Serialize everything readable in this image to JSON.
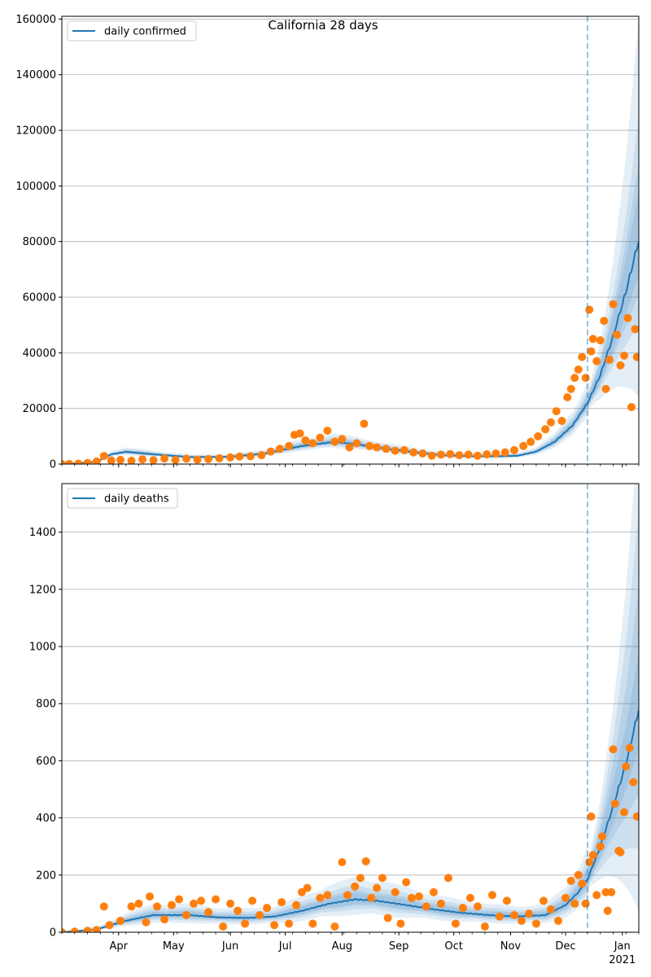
{
  "figure": {
    "title": "California 28 days"
  },
  "colors": {
    "line": "#1f77b4",
    "points": "#ff7f0e",
    "band": "#1f77b4",
    "grid": "#b0b0b0",
    "vline": "#1f77b4"
  },
  "x_axis": {
    "month_ticks": [
      {
        "label": "Apr",
        "date": "2020-04-01"
      },
      {
        "label": "May",
        "date": "2020-05-01"
      },
      {
        "label": "Jun",
        "date": "2020-06-01"
      },
      {
        "label": "Jul",
        "date": "2020-07-01"
      },
      {
        "label": "Aug",
        "date": "2020-08-01"
      },
      {
        "label": "Sep",
        "date": "2020-09-01"
      },
      {
        "label": "Oct",
        "date": "2020-10-01"
      },
      {
        "label": "Nov",
        "date": "2020-11-01"
      },
      {
        "label": "Dec",
        "date": "2020-12-01"
      },
      {
        "label": "Jan",
        "date": "2021-01-01"
      }
    ],
    "year_label": "2021",
    "xlim": [
      "2020-03-01",
      "2021-01-10"
    ],
    "forecast_start": "2020-12-13"
  },
  "chart_data": [
    {
      "type": "line",
      "title": "California 28 days",
      "legend": "daily confirmed",
      "legend_position": "top-left",
      "grid": "horizontal",
      "ylim": [
        0,
        161000
      ],
      "yticks": [
        0,
        20000,
        40000,
        60000,
        80000,
        100000,
        120000,
        140000,
        160000
      ],
      "median_keyframes": [
        [
          "2020-03-01",
          0
        ],
        [
          "2020-03-20",
          800
        ],
        [
          "2020-03-28",
          3500
        ],
        [
          "2020-04-05",
          4400
        ],
        [
          "2020-04-20",
          3500
        ],
        [
          "2020-05-10",
          2500
        ],
        [
          "2020-06-01",
          2600
        ],
        [
          "2020-06-20",
          3800
        ],
        [
          "2020-07-10",
          6500
        ],
        [
          "2020-07-28",
          8000
        ],
        [
          "2020-08-10",
          7000
        ],
        [
          "2020-08-25",
          5500
        ],
        [
          "2020-09-10",
          4200
        ],
        [
          "2020-09-25",
          3200
        ],
        [
          "2020-10-10",
          2800
        ],
        [
          "2020-10-25",
          2800
        ],
        [
          "2020-11-05",
          3000
        ],
        [
          "2020-11-15",
          4500
        ],
        [
          "2020-11-25",
          8000
        ],
        [
          "2020-12-05",
          14000
        ],
        [
          "2020-12-13",
          22000
        ],
        [
          "2020-12-20",
          32000
        ],
        [
          "2020-12-27",
          46000
        ],
        [
          "2021-01-03",
          62000
        ],
        [
          "2021-01-10",
          80500
        ]
      ],
      "band_widths": [
        [
          0.1,
          0.1,
          0.12,
          0.18
        ],
        [
          0.22,
          0.35,
          0.55,
          1.0
        ]
      ],
      "band_keyframes": [
        "2020-12-13",
        "2021-01-10"
      ],
      "hist_band_widths": [
        0.18,
        0.4,
        0.75,
        1.2
      ],
      "observed": [
        [
          "2020-03-01",
          0
        ],
        [
          "2020-03-05",
          50
        ],
        [
          "2020-03-10",
          150
        ],
        [
          "2020-03-15",
          400
        ],
        [
          "2020-03-20",
          900
        ],
        [
          "2020-03-24",
          2900
        ],
        [
          "2020-03-28",
          1300
        ],
        [
          "2020-04-02",
          1500
        ],
        [
          "2020-04-08",
          1200
        ],
        [
          "2020-04-14",
          1700
        ],
        [
          "2020-04-20",
          1400
        ],
        [
          "2020-04-26",
          2000
        ],
        [
          "2020-05-02",
          1500
        ],
        [
          "2020-05-08",
          1900
        ],
        [
          "2020-05-14",
          1600
        ],
        [
          "2020-05-20",
          1800
        ],
        [
          "2020-05-26",
          2100
        ],
        [
          "2020-06-01",
          2400
        ],
        [
          "2020-06-06",
          2700
        ],
        [
          "2020-06-12",
          2800
        ],
        [
          "2020-06-18",
          3200
        ],
        [
          "2020-06-23",
          4500
        ],
        [
          "2020-06-28",
          5500
        ],
        [
          "2020-07-03",
          6500
        ],
        [
          "2020-07-06",
          10500
        ],
        [
          "2020-07-09",
          11000
        ],
        [
          "2020-07-12",
          8500
        ],
        [
          "2020-07-16",
          7500
        ],
        [
          "2020-07-20",
          9500
        ],
        [
          "2020-07-24",
          12000
        ],
        [
          "2020-07-28",
          8000
        ],
        [
          "2020-08-01",
          9000
        ],
        [
          "2020-08-05",
          6000
        ],
        [
          "2020-08-09",
          7500
        ],
        [
          "2020-08-13",
          14500
        ],
        [
          "2020-08-16",
          6500
        ],
        [
          "2020-08-20",
          6000
        ],
        [
          "2020-08-25",
          5500
        ],
        [
          "2020-08-30",
          4800
        ],
        [
          "2020-09-04",
          5000
        ],
        [
          "2020-09-09",
          4200
        ],
        [
          "2020-09-14",
          3800
        ],
        [
          "2020-09-19",
          3000
        ],
        [
          "2020-09-24",
          3400
        ],
        [
          "2020-09-29",
          3600
        ],
        [
          "2020-10-04",
          3200
        ],
        [
          "2020-10-09",
          3400
        ],
        [
          "2020-10-14",
          3000
        ],
        [
          "2020-10-19",
          3500
        ],
        [
          "2020-10-24",
          3800
        ],
        [
          "2020-10-29",
          4200
        ],
        [
          "2020-11-03",
          5000
        ],
        [
          "2020-11-08",
          6500
        ],
        [
          "2020-11-12",
          8000
        ],
        [
          "2020-11-16",
          10000
        ],
        [
          "2020-11-20",
          12500
        ],
        [
          "2020-11-23",
          15000
        ],
        [
          "2020-11-26",
          19000
        ],
        [
          "2020-11-29",
          15500
        ],
        [
          "2020-12-02",
          24000
        ],
        [
          "2020-12-04",
          27000
        ],
        [
          "2020-12-06",
          31000
        ],
        [
          "2020-12-08",
          34000
        ],
        [
          "2020-12-10",
          38500
        ],
        [
          "2020-12-12",
          31000
        ],
        [
          "2020-12-14",
          55500
        ],
        [
          "2020-12-15",
          40500
        ],
        [
          "2020-12-16",
          45000
        ],
        [
          "2020-12-18",
          37000
        ],
        [
          "2020-12-20",
          44500
        ],
        [
          "2020-12-22",
          51500
        ],
        [
          "2020-12-23",
          27000
        ],
        [
          "2020-12-25",
          37500
        ],
        [
          "2020-12-27",
          57500
        ],
        [
          "2020-12-29",
          46500
        ],
        [
          "2020-12-31",
          35500
        ],
        [
          "2021-01-02",
          39000
        ],
        [
          "2021-01-04",
          52500
        ],
        [
          "2021-01-06",
          20500
        ],
        [
          "2021-01-08",
          48500
        ],
        [
          "2021-01-09",
          38500
        ]
      ]
    },
    {
      "type": "line",
      "legend": "daily deaths",
      "legend_position": "top-left",
      "grid": "horizontal",
      "ylim": [
        0,
        1570
      ],
      "yticks": [
        0,
        200,
        400,
        600,
        800,
        1000,
        1200,
        1400
      ],
      "median_keyframes": [
        [
          "2020-03-01",
          0
        ],
        [
          "2020-03-20",
          10
        ],
        [
          "2020-04-05",
          40
        ],
        [
          "2020-04-20",
          60
        ],
        [
          "2020-05-10",
          60
        ],
        [
          "2020-05-25",
          52
        ],
        [
          "2020-06-10",
          50
        ],
        [
          "2020-06-25",
          55
        ],
        [
          "2020-07-10",
          75
        ],
        [
          "2020-07-25",
          100
        ],
        [
          "2020-08-08",
          115
        ],
        [
          "2020-08-20",
          110
        ],
        [
          "2020-09-05",
          95
        ],
        [
          "2020-09-20",
          80
        ],
        [
          "2020-10-05",
          68
        ],
        [
          "2020-10-20",
          60
        ],
        [
          "2020-11-05",
          55
        ],
        [
          "2020-11-20",
          60
        ],
        [
          "2020-12-01",
          95
        ],
        [
          "2020-12-08",
          140
        ],
        [
          "2020-12-13",
          185
        ],
        [
          "2020-12-20",
          300
        ],
        [
          "2020-12-27",
          440
        ],
        [
          "2021-01-03",
          590
        ],
        [
          "2021-01-10",
          780
        ]
      ],
      "band_widths": [
        [
          0.15,
          0.15,
          0.2,
          0.3
        ],
        [
          0.25,
          0.55,
          0.9,
          1.3
        ]
      ],
      "band_keyframes": [
        "2020-12-13",
        "2021-01-10"
      ],
      "hist_band_widths": [
        0.35,
        0.8,
        1.4,
        2.2
      ],
      "observed": [
        [
          "2020-03-01",
          0
        ],
        [
          "2020-03-08",
          2
        ],
        [
          "2020-03-15",
          5
        ],
        [
          "2020-03-20",
          8
        ],
        [
          "2020-03-24",
          90
        ],
        [
          "2020-03-27",
          25
        ],
        [
          "2020-04-02",
          40
        ],
        [
          "2020-04-08",
          90
        ],
        [
          "2020-04-12",
          100
        ],
        [
          "2020-04-16",
          35
        ],
        [
          "2020-04-18",
          125
        ],
        [
          "2020-04-22",
          90
        ],
        [
          "2020-04-26",
          45
        ],
        [
          "2020-04-30",
          95
        ],
        [
          "2020-05-04",
          115
        ],
        [
          "2020-05-08",
          60
        ],
        [
          "2020-05-12",
          100
        ],
        [
          "2020-05-16",
          110
        ],
        [
          "2020-05-20",
          70
        ],
        [
          "2020-05-24",
          115
        ],
        [
          "2020-05-28",
          20
        ],
        [
          "2020-06-01",
          100
        ],
        [
          "2020-06-05",
          75
        ],
        [
          "2020-06-09",
          30
        ],
        [
          "2020-06-13",
          110
        ],
        [
          "2020-06-17",
          60
        ],
        [
          "2020-06-21",
          85
        ],
        [
          "2020-06-25",
          25
        ],
        [
          "2020-06-29",
          105
        ],
        [
          "2020-07-03",
          30
        ],
        [
          "2020-07-07",
          95
        ],
        [
          "2020-07-10",
          140
        ],
        [
          "2020-07-13",
          155
        ],
        [
          "2020-07-16",
          30
        ],
        [
          "2020-07-20",
          120
        ],
        [
          "2020-07-24",
          130
        ],
        [
          "2020-07-28",
          20
        ],
        [
          "2020-08-01",
          245
        ],
        [
          "2020-08-04",
          130
        ],
        [
          "2020-08-08",
          160
        ],
        [
          "2020-08-11",
          190
        ],
        [
          "2020-08-14",
          248
        ],
        [
          "2020-08-17",
          120
        ],
        [
          "2020-08-20",
          155
        ],
        [
          "2020-08-23",
          190
        ],
        [
          "2020-08-26",
          50
        ],
        [
          "2020-08-30",
          140
        ],
        [
          "2020-09-02",
          30
        ],
        [
          "2020-09-05",
          175
        ],
        [
          "2020-09-08",
          120
        ],
        [
          "2020-09-12",
          125
        ],
        [
          "2020-09-16",
          90
        ],
        [
          "2020-09-20",
          140
        ],
        [
          "2020-09-24",
          100
        ],
        [
          "2020-09-28",
          190
        ],
        [
          "2020-10-02",
          30
        ],
        [
          "2020-10-06",
          85
        ],
        [
          "2020-10-10",
          120
        ],
        [
          "2020-10-14",
          90
        ],
        [
          "2020-10-18",
          20
        ],
        [
          "2020-10-22",
          130
        ],
        [
          "2020-10-26",
          55
        ],
        [
          "2020-10-30",
          110
        ],
        [
          "2020-11-03",
          60
        ],
        [
          "2020-11-07",
          40
        ],
        [
          "2020-11-11",
          65
        ],
        [
          "2020-11-15",
          30
        ],
        [
          "2020-11-19",
          110
        ],
        [
          "2020-11-23",
          80
        ],
        [
          "2020-11-27",
          40
        ],
        [
          "2020-12-01",
          120
        ],
        [
          "2020-12-04",
          180
        ],
        [
          "2020-12-06",
          100
        ],
        [
          "2020-12-08",
          200
        ],
        [
          "2020-12-10",
          170
        ],
        [
          "2020-12-12",
          100
        ],
        [
          "2020-12-14",
          245
        ],
        [
          "2020-12-15",
          405
        ],
        [
          "2020-12-16",
          270
        ],
        [
          "2020-12-18",
          130
        ],
        [
          "2020-12-20",
          300
        ],
        [
          "2020-12-21",
          335
        ],
        [
          "2020-12-23",
          140
        ],
        [
          "2020-12-24",
          75
        ],
        [
          "2020-12-26",
          140
        ],
        [
          "2020-12-27",
          640
        ],
        [
          "2020-12-28",
          450
        ],
        [
          "2020-12-30",
          285
        ],
        [
          "2020-12-31",
          280
        ],
        [
          "2021-01-02",
          420
        ],
        [
          "2021-01-03",
          580
        ],
        [
          "2021-01-05",
          645
        ],
        [
          "2021-01-07",
          525
        ],
        [
          "2021-01-09",
          405
        ]
      ]
    }
  ]
}
